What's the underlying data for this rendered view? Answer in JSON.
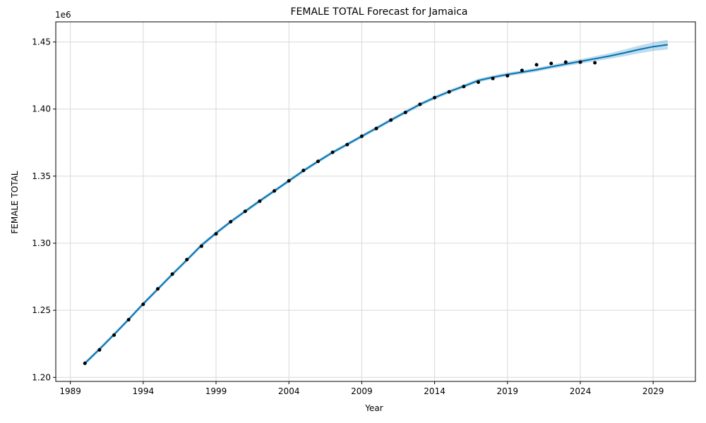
{
  "chart_data": {
    "type": "line",
    "title": "FEMALE TOTAL Forecast for Jamaica",
    "xlabel": "Year",
    "ylabel": "FEMALE TOTAL",
    "y_multiplier_label": "1e6",
    "xlim": [
      1988.0,
      2031.9
    ],
    "ylim": [
      1.197,
      1.465
    ],
    "x_ticks": [
      1989,
      1994,
      1999,
      2004,
      2009,
      2014,
      2019,
      2024,
      2029
    ],
    "x_tick_labels": [
      "1989",
      "1994",
      "1999",
      "2004",
      "2009",
      "2014",
      "2019",
      "2024",
      "2029"
    ],
    "y_ticks": [
      1.2,
      1.25,
      1.3,
      1.35,
      1.4,
      1.45
    ],
    "y_tick_labels": [
      "1.20",
      "1.25",
      "1.30",
      "1.35",
      "1.40",
      "1.45"
    ],
    "grid": true,
    "colors": {
      "forecast_line": "#0072B2",
      "uncertainty_band": "#0072B2",
      "actual_points": "#000000",
      "grid": "#d9d9d9"
    },
    "series": [
      {
        "kind": "observed",
        "x": [
          1990,
          1991,
          1992,
          1993,
          1994,
          1995,
          1996,
          1997,
          1998,
          1999,
          2000,
          2001,
          2002,
          2003,
          2004,
          2005,
          2006,
          2007,
          2008,
          2009,
          2010,
          2011,
          2012,
          2013,
          2014,
          2015,
          2016,
          2017,
          2018,
          2019,
          2020,
          2021,
          2022,
          2023,
          2024,
          2025
        ],
        "y": [
          1.2105,
          1.2205,
          1.2315,
          1.243,
          1.2545,
          1.266,
          1.277,
          1.2878,
          1.2978,
          1.307,
          1.316,
          1.3238,
          1.3313,
          1.339,
          1.3465,
          1.3543,
          1.361,
          1.3678,
          1.3735,
          1.3797,
          1.3855,
          1.3918,
          1.3975,
          1.4035,
          1.4085,
          1.4128,
          1.4168,
          1.42,
          1.4228,
          1.4248,
          1.4288,
          1.433,
          1.434,
          1.435,
          1.435,
          1.4345
        ]
      },
      {
        "kind": "forecast",
        "x": [
          1990,
          1991,
          1992,
          1993,
          1994,
          1995,
          1996,
          1997,
          1998,
          1999,
          2000,
          2001,
          2002,
          2003,
          2004,
          2005,
          2006,
          2007,
          2008,
          2009,
          2010,
          2011,
          2012,
          2013,
          2014,
          2015,
          2016,
          2017,
          2018,
          2019,
          2020,
          2021,
          2022,
          2023,
          2024,
          2025,
          2026,
          2027,
          2028,
          2029,
          2030
        ],
        "y": [
          1.2105,
          1.221,
          1.232,
          1.2432,
          1.2548,
          1.2658,
          1.2768,
          1.2875,
          1.2985,
          1.3075,
          1.316,
          1.3238,
          1.3315,
          1.339,
          1.3465,
          1.354,
          1.361,
          1.3677,
          1.3737,
          1.3797,
          1.3857,
          1.3918,
          1.3977,
          1.4035,
          1.4085,
          1.413,
          1.417,
          1.4213,
          1.4237,
          1.4258,
          1.4275,
          1.4293,
          1.4315,
          1.4335,
          1.4355,
          1.4375,
          1.4395,
          1.4418,
          1.4443,
          1.4465,
          1.448
        ],
        "lower": [
          1.209,
          1.2195,
          1.2305,
          1.2417,
          1.2533,
          1.2643,
          1.2753,
          1.286,
          1.297,
          1.306,
          1.3146,
          1.3224,
          1.3301,
          1.3376,
          1.3451,
          1.3526,
          1.3596,
          1.3663,
          1.3723,
          1.3783,
          1.3843,
          1.3904,
          1.3963,
          1.4021,
          1.4071,
          1.4116,
          1.4156,
          1.4199,
          1.4223,
          1.4244,
          1.4261,
          1.4278,
          1.43,
          1.4319,
          1.4338,
          1.4356,
          1.4374,
          1.4393,
          1.4414,
          1.4433,
          1.4444
        ],
        "upper": [
          1.212,
          1.2225,
          1.2335,
          1.2447,
          1.2563,
          1.2673,
          1.2783,
          1.289,
          1.3,
          1.309,
          1.3174,
          1.3252,
          1.3329,
          1.3404,
          1.3479,
          1.3554,
          1.3624,
          1.3691,
          1.3751,
          1.3811,
          1.3871,
          1.3932,
          1.3991,
          1.4049,
          1.4099,
          1.4144,
          1.4184,
          1.4227,
          1.4251,
          1.4272,
          1.4289,
          1.4308,
          1.433,
          1.4351,
          1.4372,
          1.4394,
          1.4416,
          1.4443,
          1.4472,
          1.4497,
          1.4516
        ]
      }
    ]
  }
}
